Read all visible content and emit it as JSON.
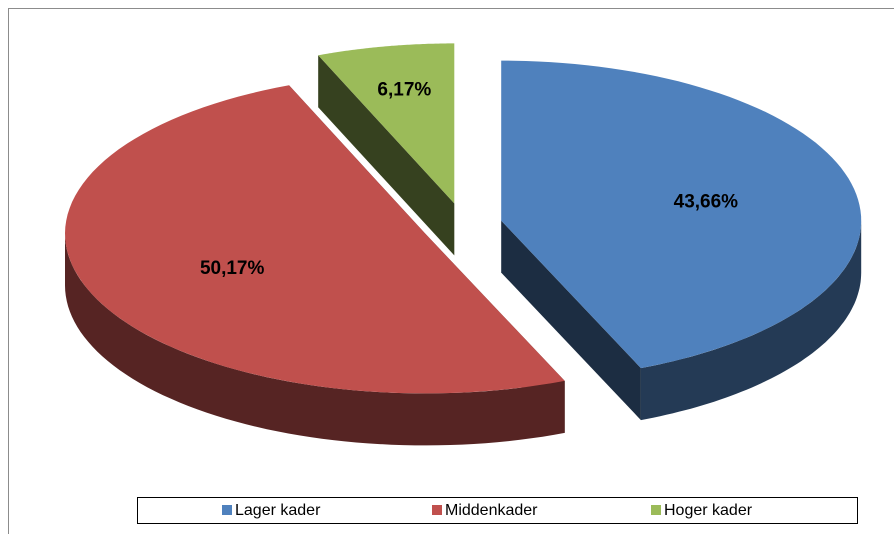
{
  "chart_data": {
    "type": "pie",
    "categories": [
      "Lager kader",
      "Middenkader",
      "Hoger kader"
    ],
    "values": [
      43.66,
      50.17,
      6.17
    ],
    "value_labels": [
      "43,66%",
      "50,17%",
      "6,17%"
    ],
    "colors": [
      "#4f81bd",
      "#c0504d",
      "#9bbb59"
    ],
    "legend": "bottom"
  }
}
